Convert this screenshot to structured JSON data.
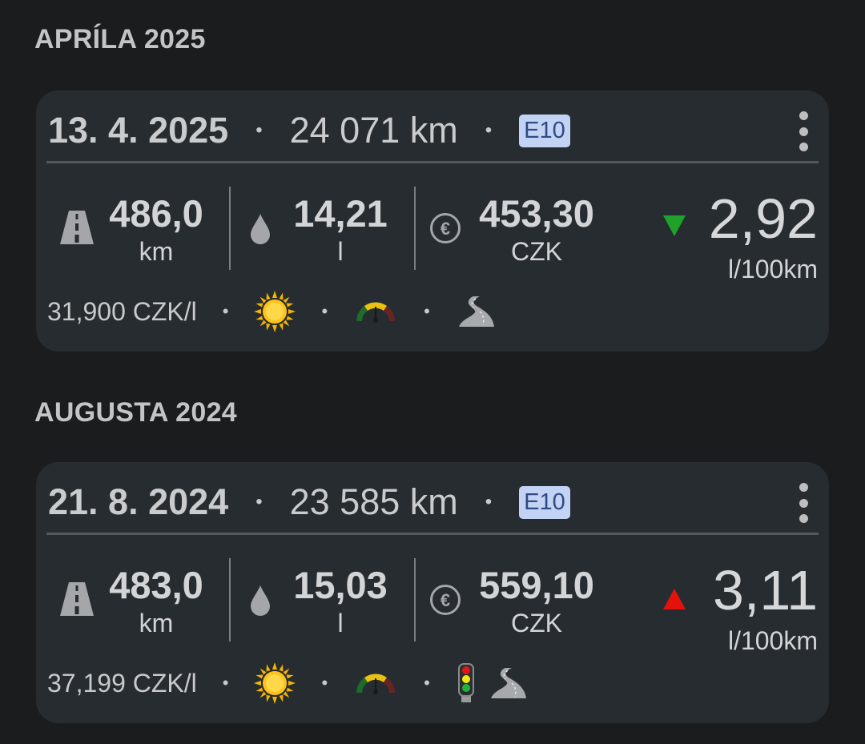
{
  "groups": [
    {
      "month": "APRÍLA 2025",
      "entry": {
        "date": "13. 4. 2025",
        "odometer": "24 071 km",
        "fuel_type": "E10",
        "distance": "486,0",
        "distance_unit": "km",
        "volume": "14,21",
        "volume_unit": "l",
        "cost": "453,30",
        "cost_unit": "CZK",
        "consumption": "2,92",
        "consumption_unit": "l/100km",
        "trend": "down",
        "trend_color": "#1fa22a",
        "unit_price": "31,900 CZK/l",
        "icons": [
          "sun-icon",
          "gauge-icon",
          "winding-road-icon"
        ]
      }
    },
    {
      "month": "AUGUSTA 2024",
      "entry": {
        "date": "21. 8. 2024",
        "odometer": "23 585 km",
        "fuel_type": "E10",
        "distance": "483,0",
        "distance_unit": "km",
        "volume": "15,03",
        "volume_unit": "l",
        "cost": "559,10",
        "cost_unit": "CZK",
        "consumption": "3,11",
        "consumption_unit": "l/100km",
        "trend": "up",
        "trend_color": "#e3120b",
        "unit_price": "37,199 CZK/l",
        "icons": [
          "sun-icon",
          "gauge-icon",
          "traffic-light-icon",
          "winding-road-icon"
        ]
      }
    }
  ],
  "separator": "•"
}
